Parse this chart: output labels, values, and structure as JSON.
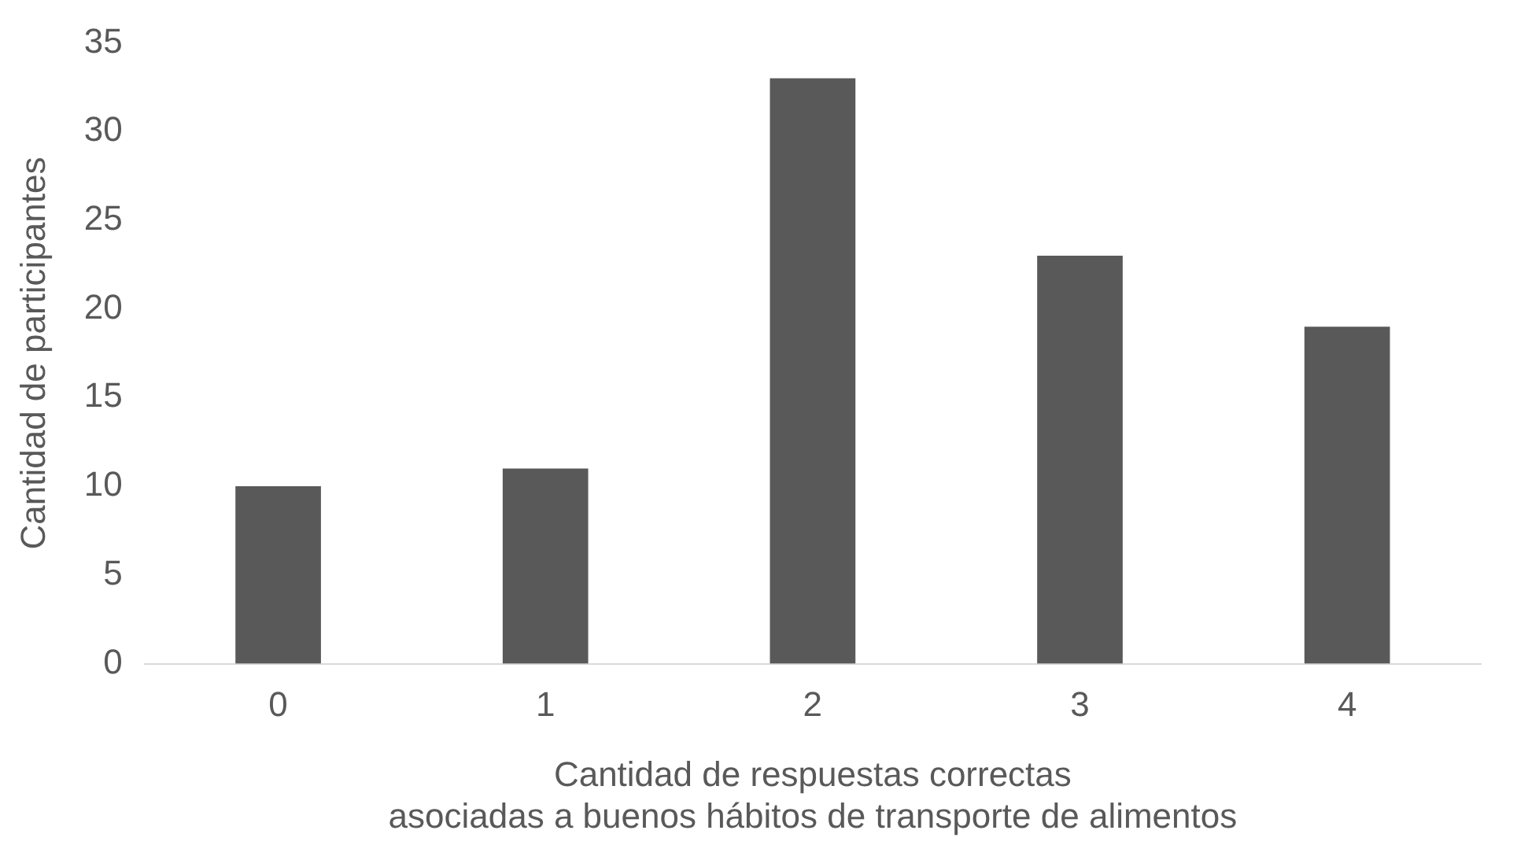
{
  "chart_data": {
    "type": "bar",
    "xlabel": "Cantidad de respuestas correctas\nasociadas a buenos hábitos de transporte de alimentos",
    "ylabel": "Cantidad de participantes",
    "categories": [
      "0",
      "1",
      "2",
      "3",
      "4"
    ],
    "values": [
      10,
      11,
      33,
      23,
      19
    ],
    "color": "#595959",
    "ylim": [
      0,
      35
    ],
    "yticks": [
      0,
      5,
      10,
      15,
      20,
      25,
      30,
      35
    ],
    "grid": false,
    "legend": false
  }
}
